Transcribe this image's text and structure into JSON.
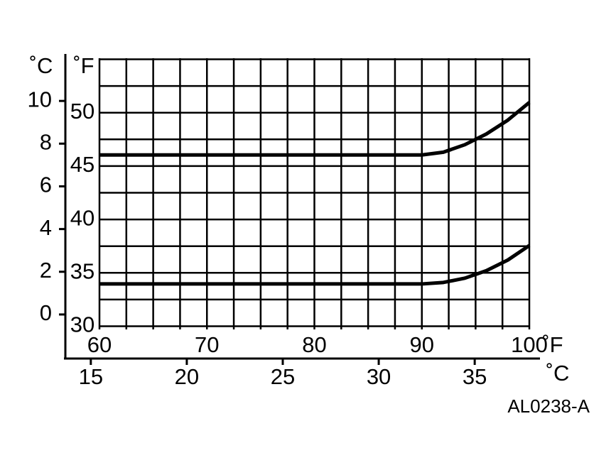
{
  "chart_data": {
    "type": "line",
    "y_unit_label": "˚C",
    "y2_unit_label": "˚F",
    "x_unit_label": "˚F",
    "x2_unit_label": "˚C",
    "code": "AL0238-A",
    "x": [
      60,
      70,
      80,
      90,
      92,
      94,
      96,
      98,
      100
    ],
    "series": [
      {
        "color": "#000000",
        "values": [
          7.47,
          7.47,
          7.47,
          7.47,
          7.6,
          7.95,
          8.45,
          9.1,
          9.93
        ]
      },
      {
        "color": "#000000",
        "values": [
          1.43,
          1.43,
          1.43,
          1.43,
          1.5,
          1.7,
          2.05,
          2.55,
          3.23
        ]
      }
    ],
    "xlim": [
      60,
      100
    ],
    "xticks": [
      60,
      70,
      80,
      90,
      100
    ],
    "x2lim": [
      13.6,
      38.4
    ],
    "x2ticks": [
      15,
      20,
      25,
      30,
      35
    ],
    "ylim": [
      -0.7,
      12.0
    ],
    "yticks": [
      0,
      2,
      4,
      6,
      8,
      10
    ],
    "y2lim": [
      29.7,
      55.1
    ],
    "y2ticks": [
      30,
      35,
      40,
      45,
      50
    ],
    "xgrid": [
      60,
      62.5,
      65,
      67.5,
      70,
      72.5,
      75,
      77.5,
      80,
      82.5,
      85,
      87.5,
      90,
      92.5,
      95,
      97.5,
      100
    ],
    "ygrid": [
      30,
      32.5,
      35,
      37.5,
      40,
      42.5,
      45,
      47.5,
      50,
      52.5,
      55
    ]
  }
}
